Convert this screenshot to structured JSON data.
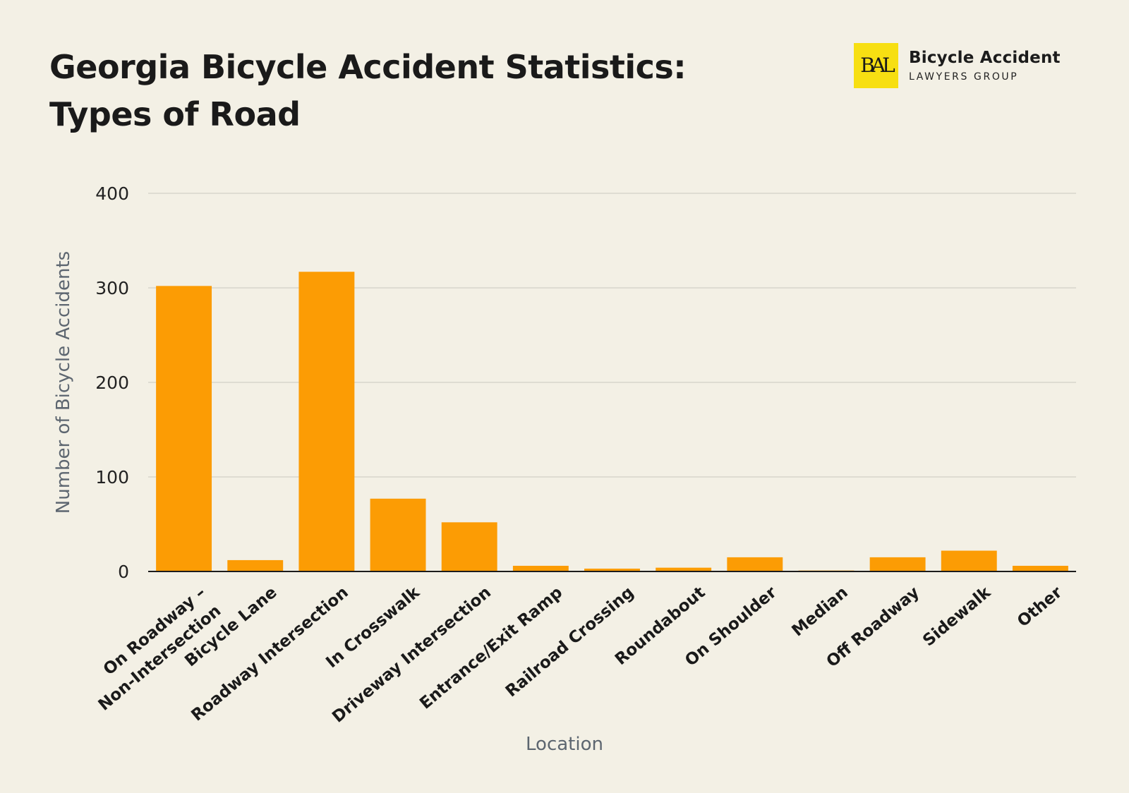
{
  "title_lines": [
    "Georgia Bicycle Accident Statistics:",
    "Types of Road"
  ],
  "logo": {
    "mark": "BAL",
    "name": "Bicycle Accident",
    "subtitle": "LAWYERS GROUP"
  },
  "colors": {
    "bar": "#fc9c04",
    "grid": "#d8d5cc",
    "axis": "#1c1c1c",
    "axis_label": "#5d6670",
    "background": "#f3f0e5",
    "logo_bg": "#f7df12"
  },
  "chart_data": {
    "type": "bar",
    "xlabel": "Location",
    "ylabel": "Number of Bicycle Accidents",
    "ylim": [
      0,
      400
    ],
    "yticks": [
      0,
      100,
      200,
      300,
      400
    ],
    "grid": true,
    "categories": [
      [
        "On Roadway –",
        "Non-Intersection"
      ],
      [
        "Bicycle Lane"
      ],
      [
        "Roadway Intersection"
      ],
      [
        "In Crosswalk"
      ],
      [
        "Driveway Intersection"
      ],
      [
        "Entrance/Exit Ramp"
      ],
      [
        "Railroad Crossing"
      ],
      [
        "Roundabout"
      ],
      [
        "On Shoulder"
      ],
      [
        "Median"
      ],
      [
        "Off Roadway"
      ],
      [
        "Sidewalk"
      ],
      [
        "Other"
      ]
    ],
    "values": [
      302,
      12,
      317,
      77,
      52,
      6,
      3,
      4,
      15,
      1,
      15,
      22,
      6
    ]
  }
}
